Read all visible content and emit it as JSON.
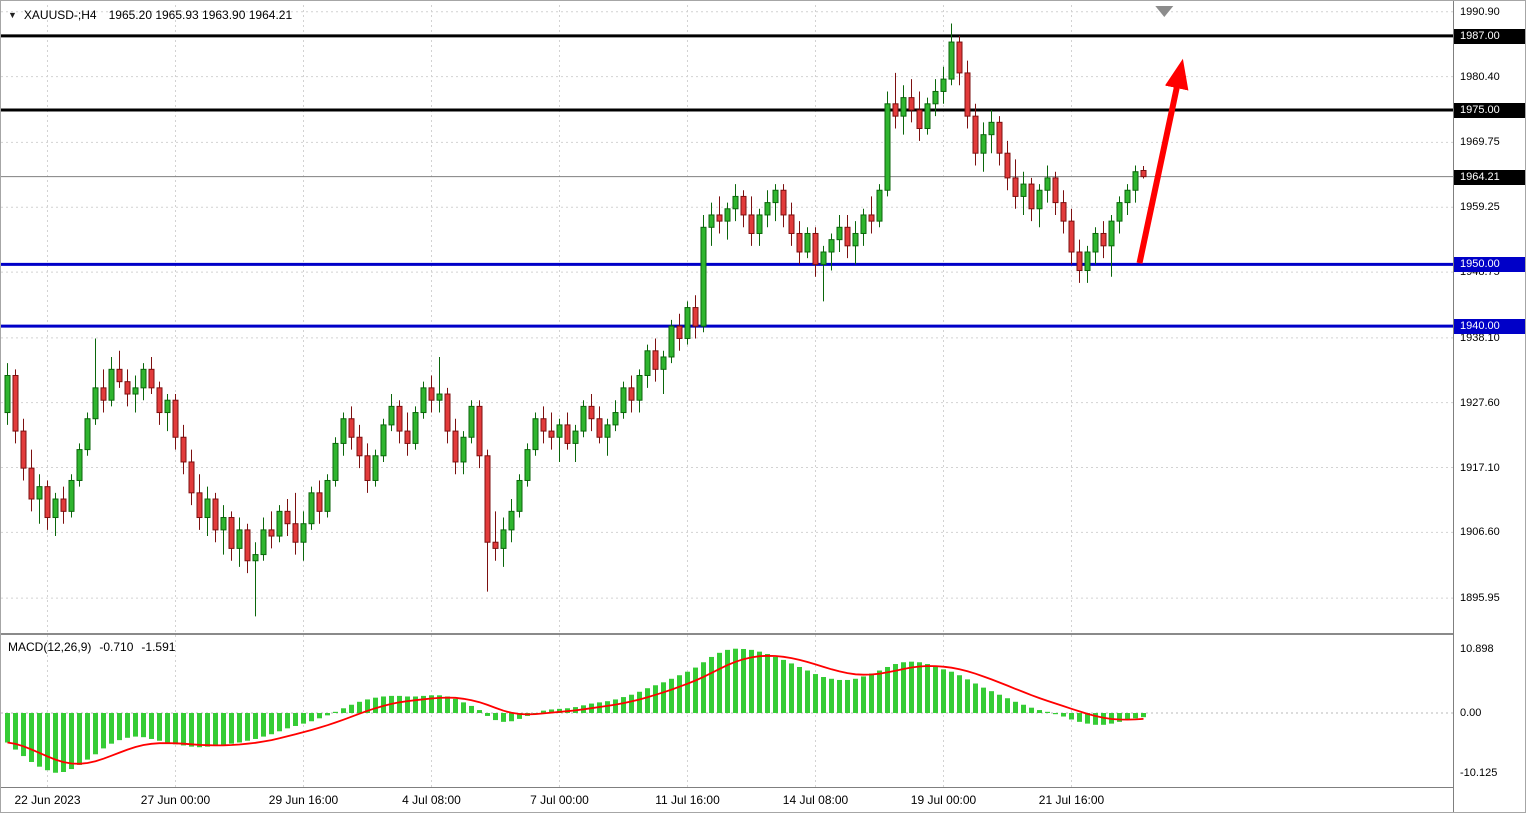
{
  "header": {
    "collapse_icon": "▼",
    "title": "XAUUSD-;H4",
    "ohlc": "1965.20 1965.93 1963.90 1964.21"
  },
  "macd_panel": {
    "label": "MACD(12,26,9)",
    "main_value": "-0.710",
    "signal_value": "-1.591"
  },
  "colors": {
    "bull_fill": "#2FB52F",
    "bull_stroke": "#0B660B",
    "bear_fill": "#E23B3B",
    "bear_stroke": "#7C1010",
    "histogram": "#35CC35",
    "signal_line": "#FF0000",
    "grid": "#D2D2D2",
    "zero_line": "#B8B8B8",
    "level_black": "#000000",
    "level_blue": "#0000C8",
    "current_price_line": "#808080",
    "arrow": "#FF0000",
    "object_triangle": "#8C8C8C",
    "badge_text": "#FFFFFF"
  },
  "chart_data": [
    {
      "type": "candlestick",
      "title": "XAUUSD- H4",
      "symbol": "XAUUSD-",
      "timeframe": "H4",
      "last_bar_ohlc": {
        "open": 1965.2,
        "high": 1965.93,
        "low": 1963.9,
        "close": 1964.21
      },
      "ylim": [
        1890.3,
        1992.0
      ],
      "grid": true,
      "y_grid_values": [
        1990.9,
        1980.4,
        1969.75,
        1959.25,
        1948.75,
        1938.1,
        1927.6,
        1917.1,
        1906.6,
        1895.95
      ],
      "x_tick_labels": [
        "22 Jun 2023",
        "27 Jun 00:00",
        "29 Jun 16:00",
        "4 Jul 08:00",
        "7 Jul 00:00",
        "11 Jul 16:00",
        "14 Jul 08:00",
        "19 Jul 00:00",
        "21 Jul 16:00"
      ],
      "x_tick_bar_indices": [
        5,
        21,
        37,
        53,
        69,
        85,
        101,
        117,
        133
      ],
      "horizontal_lines": [
        {
          "price": 1987.0,
          "label": "1987.00",
          "color": "#000000",
          "width": 3
        },
        {
          "price": 1975.0,
          "label": "1975.00",
          "color": "#000000",
          "width": 3
        },
        {
          "price": 1950.0,
          "label": "1950.00",
          "color": "#0000C8",
          "width": 3
        },
        {
          "price": 1940.0,
          "label": "1940.00",
          "color": "#0000C8",
          "width": 3
        }
      ],
      "current_price": {
        "price": 1964.21,
        "label": "1964.21",
        "color": "#000000"
      },
      "annotations": {
        "up_arrow": {
          "from": [
            141.5,
            1950.2
          ],
          "to": [
            146.3,
            1979.5
          ],
          "color": "#FF0000"
        },
        "top_triangle": {
          "bar": 144.6
        }
      },
      "candles": [
        [
          1926,
          1934,
          1924,
          1932
        ],
        [
          1932,
          1933,
          1921,
          1923
        ],
        [
          1923,
          1925,
          1915,
          1917
        ],
        [
          1917,
          1920,
          1910,
          1912
        ],
        [
          1912,
          1916,
          1908,
          1914
        ],
        [
          1914,
          1915,
          1907,
          1909
        ],
        [
          1909,
          1913,
          1906,
          1912
        ],
        [
          1912,
          1914,
          1908,
          1910
        ],
        [
          1910,
          1916,
          1909,
          1915
        ],
        [
          1915,
          1921,
          1914,
          1920
        ],
        [
          1920,
          1926,
          1919,
          1925
        ],
        [
          1925,
          1938,
          1924,
          1930
        ],
        [
          1930,
          1933,
          1926,
          1928
        ],
        [
          1928,
          1935,
          1927,
          1933
        ],
        [
          1933,
          1936,
          1930,
          1931
        ],
        [
          1931,
          1933,
          1927,
          1929
        ],
        [
          1929,
          1932,
          1926,
          1930
        ],
        [
          1930,
          1934,
          1928,
          1933
        ],
        [
          1933,
          1935,
          1929,
          1930
        ],
        [
          1930,
          1931,
          1924,
          1926
        ],
        [
          1926,
          1929,
          1923,
          1928
        ],
        [
          1928,
          1929,
          1920,
          1922
        ],
        [
          1922,
          1924,
          1916,
          1918
        ],
        [
          1918,
          1920,
          1911,
          1913
        ],
        [
          1913,
          1916,
          1907,
          1909
        ],
        [
          1909,
          1914,
          1906,
          1912
        ],
        [
          1912,
          1913,
          1905,
          1907
        ],
        [
          1907,
          1911,
          1903,
          1909
        ],
        [
          1909,
          1910,
          1902,
          1904
        ],
        [
          1904,
          1909,
          1901,
          1907
        ],
        [
          1907,
          1908,
          1900,
          1902
        ],
        [
          1902,
          1905,
          1893,
          1903
        ],
        [
          1903,
          1909,
          1902,
          1907
        ],
        [
          1907,
          1910,
          1904,
          1906
        ],
        [
          1906,
          1911,
          1905,
          1910
        ],
        [
          1910,
          1912,
          1906,
          1908
        ],
        [
          1908,
          1913,
          1903,
          1905
        ],
        [
          1905,
          1910,
          1902,
          1908
        ],
        [
          1908,
          1914,
          1907,
          1913
        ],
        [
          1913,
          1915,
          1908,
          1910
        ],
        [
          1910,
          1916,
          1909,
          1915
        ],
        [
          1915,
          1922,
          1914,
          1921
        ],
        [
          1921,
          1926,
          1919,
          1925
        ],
        [
          1925,
          1927,
          1920,
          1922
        ],
        [
          1922,
          1924,
          1917,
          1919
        ],
        [
          1919,
          1921,
          1913,
          1915
        ],
        [
          1915,
          1920,
          1914,
          1919
        ],
        [
          1919,
          1925,
          1918,
          1924
        ],
        [
          1924,
          1929,
          1923,
          1927
        ],
        [
          1927,
          1928,
          1921,
          1923
        ],
        [
          1923,
          1926,
          1919,
          1921
        ],
        [
          1921,
          1927,
          1920,
          1926
        ],
        [
          1926,
          1931,
          1925,
          1930
        ],
        [
          1930,
          1932,
          1926,
          1928
        ],
        [
          1928,
          1935,
          1926,
          1929
        ],
        [
          1929,
          1930,
          1921,
          1923
        ],
        [
          1923,
          1925,
          1916,
          1918
        ],
        [
          1918,
          1923,
          1916,
          1922
        ],
        [
          1922,
          1928,
          1921,
          1927
        ],
        [
          1927,
          1928,
          1917,
          1919
        ],
        [
          1919,
          1920,
          1897,
          1905
        ],
        [
          1905,
          1910,
          1902,
          1904
        ],
        [
          1904,
          1909,
          1901,
          1907
        ],
        [
          1907,
          1912,
          1905,
          1910
        ],
        [
          1910,
          1916,
          1909,
          1915
        ],
        [
          1915,
          1921,
          1914,
          1920
        ],
        [
          1920,
          1926,
          1919,
          1925
        ],
        [
          1925,
          1927,
          1921,
          1923
        ],
        [
          1923,
          1926,
          1920,
          1922
        ],
        [
          1922,
          1925,
          1918,
          1924
        ],
        [
          1924,
          1926,
          1920,
          1921
        ],
        [
          1921,
          1924,
          1918,
          1923
        ],
        [
          1923,
          1928,
          1922,
          1927
        ],
        [
          1927,
          1929,
          1923,
          1925
        ],
        [
          1925,
          1927,
          1921,
          1922
        ],
        [
          1922,
          1925,
          1919,
          1924
        ],
        [
          1924,
          1928,
          1923,
          1926
        ],
        [
          1926,
          1931,
          1925,
          1930
        ],
        [
          1930,
          1932,
          1926,
          1928
        ],
        [
          1928,
          1933,
          1926,
          1932
        ],
        [
          1932,
          1937,
          1930,
          1936
        ],
        [
          1936,
          1938,
          1931,
          1933
        ],
        [
          1933,
          1936,
          1929,
          1935
        ],
        [
          1935,
          1941,
          1934,
          1940
        ],
        [
          1940,
          1942,
          1936,
          1938
        ],
        [
          1938,
          1944,
          1937,
          1943
        ],
        [
          1943,
          1945,
          1938,
          1940
        ],
        [
          1940,
          1958,
          1939,
          1956
        ],
        [
          1956,
          1960,
          1953,
          1958
        ],
        [
          1958,
          1961,
          1955,
          1957
        ],
        [
          1957,
          1960,
          1954,
          1959
        ],
        [
          1959,
          1963,
          1957,
          1961
        ],
        [
          1961,
          1962,
          1956,
          1958
        ],
        [
          1958,
          1961,
          1953,
          1955
        ],
        [
          1955,
          1959,
          1953,
          1958
        ],
        [
          1958,
          1962,
          1956,
          1960
        ],
        [
          1960,
          1963,
          1957,
          1962
        ],
        [
          1962,
          1963,
          1956,
          1958
        ],
        [
          1958,
          1960,
          1953,
          1955
        ],
        [
          1955,
          1957,
          1950,
          1952
        ],
        [
          1952,
          1956,
          1951,
          1955
        ],
        [
          1955,
          1956,
          1948,
          1950
        ],
        [
          1950,
          1953,
          1944,
          1952
        ],
        [
          1952,
          1955,
          1949,
          1954
        ],
        [
          1954,
          1958,
          1952,
          1956
        ],
        [
          1956,
          1958,
          1951,
          1953
        ],
        [
          1953,
          1957,
          1950,
          1955
        ],
        [
          1955,
          1959,
          1953,
          1958
        ],
        [
          1958,
          1961,
          1955,
          1957
        ],
        [
          1957,
          1963,
          1956,
          1962
        ],
        [
          1962,
          1978,
          1961,
          1976
        ],
        [
          1976,
          1981,
          1972,
          1974
        ],
        [
          1974,
          1979,
          1971,
          1977
        ],
        [
          1977,
          1980,
          1973,
          1975
        ],
        [
          1975,
          1978,
          1970,
          1972
        ],
        [
          1972,
          1977,
          1971,
          1976
        ],
        [
          1976,
          1980,
          1974,
          1978
        ],
        [
          1978,
          1982,
          1976,
          1980
        ],
        [
          1980,
          1989,
          1979,
          1986
        ],
        [
          1986,
          1987,
          1979,
          1981
        ],
        [
          1981,
          1983,
          1972,
          1974
        ],
        [
          1974,
          1976,
          1966,
          1968
        ],
        [
          1968,
          1973,
          1965,
          1971
        ],
        [
          1971,
          1975,
          1968,
          1973
        ],
        [
          1973,
          1974,
          1966,
          1968
        ],
        [
          1968,
          1970,
          1962,
          1964
        ],
        [
          1964,
          1967,
          1959,
          1961
        ],
        [
          1961,
          1965,
          1958,
          1963
        ],
        [
          1963,
          1964,
          1957,
          1959
        ],
        [
          1959,
          1963,
          1956,
          1962
        ],
        [
          1962,
          1966,
          1960,
          1964
        ],
        [
          1964,
          1965,
          1958,
          1960
        ],
        [
          1960,
          1962,
          1955,
          1957
        ],
        [
          1957,
          1959,
          1950,
          1952
        ],
        [
          1952,
          1954,
          1947,
          1949
        ],
        [
          1949,
          1953,
          1947,
          1952
        ],
        [
          1952,
          1956,
          1950,
          1955
        ],
        [
          1955,
          1957,
          1951,
          1953
        ],
        [
          1953,
          1958,
          1948,
          1957
        ],
        [
          1957,
          1961,
          1955,
          1960
        ],
        [
          1960,
          1963,
          1958,
          1962
        ],
        [
          1962,
          1966,
          1960,
          1965
        ],
        [
          1965.2,
          1965.93,
          1963.9,
          1964.21
        ]
      ]
    },
    {
      "type": "bar",
      "title": "MACD(12,26,9)",
      "y_labels": {
        "max": "10.898",
        "zero": "0.00",
        "min": "-10.125"
      },
      "y_scale_values": [
        10.898,
        0,
        -10.125
      ],
      "signal_ema_period": 9,
      "histogram": [
        -5.0,
        -6.2,
        -7.3,
        -8.3,
        -9.1,
        -9.7,
        -10.125,
        -10.0,
        -9.5,
        -8.8,
        -7.9,
        -7.0,
        -6.0,
        -5.2,
        -4.6,
        -4.2,
        -4.0,
        -4.1,
        -4.4,
        -4.7,
        -5.0,
        -5.3,
        -5.5,
        -5.7,
        -5.8,
        -5.7,
        -5.6,
        -5.4,
        -5.2,
        -5.0,
        -4.7,
        -4.4,
        -4.0,
        -3.6,
        -3.1,
        -2.6,
        -2.2,
        -1.8,
        -1.4,
        -0.9,
        -0.4,
        0.2,
        0.8,
        1.4,
        1.9,
        2.3,
        2.6,
        2.8,
        2.9,
        2.9,
        2.8,
        2.8,
        2.9,
        3.0,
        3.0,
        2.8,
        2.4,
        1.8,
        1.2,
        0.5,
        -0.5,
        -1.2,
        -1.5,
        -1.4,
        -1.0,
        -0.5,
        0.0,
        0.4,
        0.6,
        0.7,
        0.8,
        1.0,
        1.3,
        1.6,
        1.8,
        2.0,
        2.3,
        2.7,
        3.1,
        3.6,
        4.2,
        4.7,
        5.2,
        5.8,
        6.4,
        7.0,
        7.7,
        8.6,
        9.5,
        10.2,
        10.7,
        10.898,
        10.85,
        10.7,
        10.4,
        10.0,
        9.5,
        9.0,
        8.4,
        7.8,
        7.2,
        6.6,
        6.1,
        5.8,
        5.6,
        5.6,
        5.8,
        6.2,
        6.7,
        7.2,
        7.8,
        8.3,
        8.6,
        8.7,
        8.6,
        8.3,
        7.9,
        7.4,
        7.0,
        6.4,
        5.7,
        5.0,
        4.3,
        3.7,
        3.1,
        2.5,
        1.9,
        1.4,
        0.9,
        0.5,
        0.2,
        -0.2,
        -0.6,
        -1.1,
        -1.5,
        -1.8,
        -2.0,
        -2.0,
        -1.8,
        -1.5,
        -1.2,
        -0.9,
        -0.71
      ]
    }
  ]
}
